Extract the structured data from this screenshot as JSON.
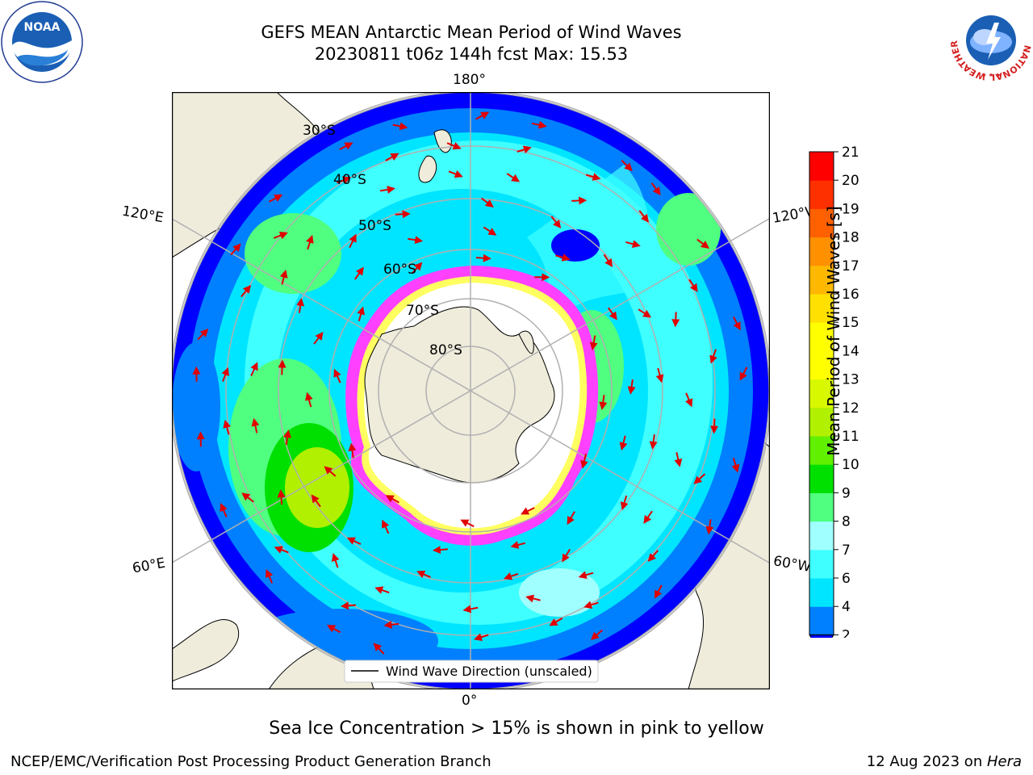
{
  "header": {
    "title_line1": "GEFS MEAN Antarctic Mean Period of Wind Waves",
    "title_line2": "20230811 t06z 144h fcst   Max: 15.53"
  },
  "logos": {
    "left": {
      "name": "noaa-logo",
      "text": "NOAA",
      "ring_text": "NATIONAL OCEANIC AND ATMOSPHERIC ADMINISTRATION · U.S. DEPARTMENT OF COMMERCE"
    },
    "right": {
      "name": "nws-logo",
      "ring_text": "NATIONAL WEATHER SERVICE"
    }
  },
  "map": {
    "projection": "south-polar-stereographic",
    "longitude_labels": {
      "top": "180°",
      "bottom": "0°",
      "left_upper": "120°E",
      "left_lower": "60°E",
      "right_upper": "120°W",
      "right_lower": "60°W"
    },
    "latitude_labels": [
      "30°S",
      "40°S",
      "50°S",
      "60°S",
      "70°S",
      "80°S"
    ],
    "legend_label": "Wind Wave Direction (unscaled)",
    "colors": {
      "land": "#efecdc",
      "sea_ice_low": "#ff40ff",
      "sea_ice_high": "#ffff60",
      "arrow": "#e00000",
      "grid": "#b0b0b0"
    }
  },
  "colorbar": {
    "label": "Mean Period of Wind Waves [s]",
    "ticks": [
      "2",
      "4",
      "6",
      "7",
      "8",
      "9",
      "10",
      "11",
      "12",
      "13",
      "14",
      "15",
      "16",
      "17",
      "18",
      "19",
      "20",
      "21"
    ],
    "colors": [
      "#0080ff",
      "#00e5ff",
      "#40ffff",
      "#a0ffff",
      "#50ff80",
      "#00e000",
      "#60f000",
      "#b0f000",
      "#d8f800",
      "#ffff00",
      "#ffff00",
      "#ffe000",
      "#ffb800",
      "#ff9000",
      "#ff6000",
      "#ff3000",
      "#ff0000"
    ],
    "extend_color": "#0000ff"
  },
  "caption": "Sea Ice Concentration > 15% is shown in pink to yellow",
  "footer": {
    "left": "NCEP/EMC/Verification Post Processing Product Generation Branch",
    "right_date": "12 Aug 2023 on ",
    "right_host": "Hera"
  }
}
